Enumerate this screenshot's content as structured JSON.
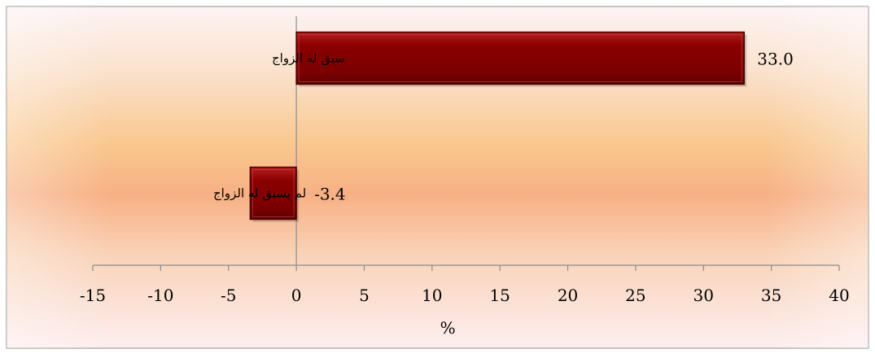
{
  "chart_data": {
    "type": "bar",
    "orientation": "horizontal",
    "categories": [
      "سبق له الزواج",
      "لم يسبق له الزواج"
    ],
    "values": [
      33.0,
      -3.4
    ],
    "data_labels": [
      "33.0",
      "-3.4"
    ],
    "xlabel": "%",
    "xlim": [
      -15,
      40
    ],
    "xticks": [
      -15,
      -10,
      -5,
      0,
      5,
      10,
      15,
      20,
      25,
      30,
      35,
      40
    ],
    "grid": false,
    "legend": "none",
    "colors": {
      "bar": "#8b0000",
      "bar_edge": "#4a0000",
      "axis": "#8c8c8c",
      "frame": "#8c8c8c",
      "text": "#000000"
    }
  }
}
